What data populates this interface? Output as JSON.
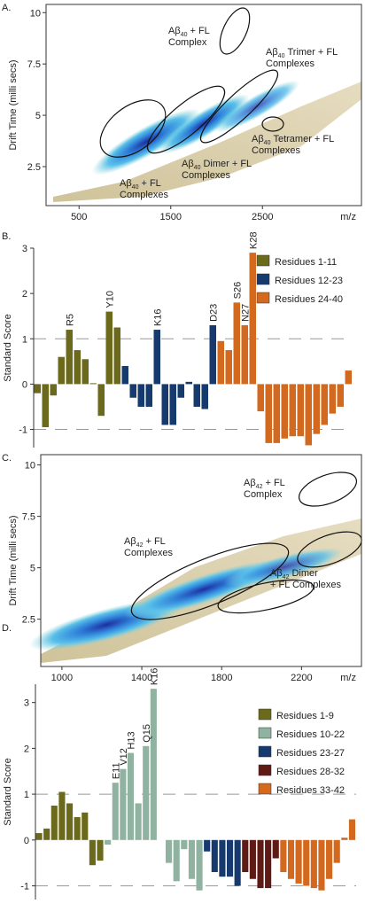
{
  "chart_data": [
    {
      "type": "heatmap",
      "panel": "A.",
      "ylabel": "Drift Time (milli secs)",
      "xlabel": "m/z",
      "xlim": [
        140,
        3580
      ],
      "ylim": [
        0.6,
        10.4
      ],
      "xticks": [
        500,
        1500,
        2500
      ],
      "yticks": [
        2.5,
        5,
        7.5,
        10
      ],
      "annotations": [
        {
          "label": "Aβ",
          "sub": "40",
          "suffix": "+ FL",
          "line2": "Complex"
        },
        {
          "label": "Aβ",
          "sub": "40",
          "suffix": "Trimer + FL",
          "line2": "Complexes"
        },
        {
          "label": "Aβ",
          "sub": "40",
          "suffix": "Tetramer + FL",
          "line2": "Complexes"
        },
        {
          "label": "Aβ",
          "sub": "40",
          "suffix": "Dimer + FL",
          "line2": "Complexes"
        },
        {
          "label": "Aβ",
          "sub": "40",
          "suffix": "+ FL",
          "line2": "Complexes"
        }
      ]
    },
    {
      "type": "bar",
      "panel": "B.",
      "ylabel": "Standard Score",
      "ylim": [
        -1.4,
        3.0
      ],
      "yticks": [
        -1,
        0,
        1,
        2,
        3
      ],
      "ref_lines": [
        -1,
        1
      ],
      "categories": [
        null,
        null,
        null,
        null,
        "R5",
        null,
        null,
        null,
        null,
        "Y10",
        null,
        null,
        null,
        null,
        null,
        "K16",
        null,
        null,
        null,
        null,
        null,
        null,
        "D23",
        null,
        null,
        "S26",
        "N27",
        "K28",
        null,
        null,
        null,
        null,
        null,
        null,
        null,
        null,
        null,
        null,
        null,
        null
      ],
      "series": [
        {
          "name": "Residues 1-11",
          "color": "#6b6a1c",
          "values": [
            -0.2,
            -0.95,
            -0.25,
            0.6,
            1.2,
            0.75,
            0.55,
            0.02,
            -0.7,
            1.6,
            1.25,
            null,
            null,
            null,
            null,
            null,
            null,
            null,
            null,
            null,
            null,
            null,
            null,
            null,
            null,
            null,
            null,
            null,
            null,
            null,
            null,
            null,
            null,
            null,
            null,
            null,
            null,
            null,
            null,
            null
          ]
        },
        {
          "name": "Residues 12-23",
          "color": "#173a6e",
          "values": [
            null,
            null,
            null,
            null,
            null,
            null,
            null,
            null,
            null,
            null,
            null,
            0.4,
            -0.3,
            -0.5,
            -0.5,
            1.2,
            -0.9,
            -0.9,
            -0.3,
            0.05,
            -0.5,
            -0.55,
            1.3,
            null,
            null,
            null,
            null,
            null,
            null,
            null,
            null,
            null,
            null,
            null,
            null,
            null,
            null,
            null,
            null,
            null
          ]
        },
        {
          "name": "Residues 24-40",
          "color": "#d2691e",
          "values": [
            null,
            null,
            null,
            null,
            null,
            null,
            null,
            null,
            null,
            null,
            null,
            null,
            null,
            null,
            null,
            null,
            null,
            null,
            null,
            null,
            null,
            null,
            null,
            0.95,
            0.75,
            1.8,
            1.3,
            2.9,
            -0.6,
            -1.3,
            -1.3,
            -1.2,
            -1.15,
            -1.15,
            -1.35,
            -1.1,
            -0.9,
            -0.65,
            -0.5,
            0.3
          ]
        }
      ]
    },
    {
      "type": "heatmap",
      "panel": "C.",
      "ylabel": "Drift Time (milli secs)",
      "xlabel": "m/z",
      "xlim": [
        894,
        2500
      ],
      "ylim": [
        0.2,
        10.5
      ],
      "xticks": [
        1000,
        1400,
        1800,
        2200
      ],
      "yticks": [
        2.5,
        5,
        7.5,
        10
      ],
      "annotations": [
        {
          "label": "Aβ",
          "sub": "42",
          "suffix": "+ FL",
          "line2": "Complex"
        },
        {
          "label": "Aβ",
          "sub": "42",
          "suffix": "+ FL",
          "line2": "Complexes"
        },
        {
          "label": "Aβ",
          "sub": "42",
          "suffix": "Dimer",
          "line2": "+ FL Complexes"
        }
      ]
    },
    {
      "type": "bar",
      "panel": "D.",
      "ylabel": "Standard Score",
      "ylim": [
        -1.3,
        3.4
      ],
      "yticks": [
        -1,
        0,
        1,
        2,
        3
      ],
      "ref_lines": [
        -1,
        1
      ],
      "categories": [
        null,
        null,
        null,
        null,
        null,
        null,
        null,
        null,
        null,
        null,
        "E11",
        "V12",
        "H13",
        null,
        "Q15",
        "K16",
        null,
        null,
        null,
        null,
        null,
        null,
        null,
        null,
        null,
        null,
        null,
        null,
        null,
        null,
        null,
        null,
        null,
        null,
        null,
        null,
        null,
        null,
        null,
        null,
        null,
        null
      ],
      "series": [
        {
          "name": "Residues 1-9",
          "color": "#6b6a1c",
          "values": [
            0.15,
            0.25,
            0.75,
            1.05,
            0.8,
            0.5,
            0.6,
            -0.55,
            -0.45,
            null,
            null,
            null,
            null,
            null,
            null,
            null,
            null,
            null,
            null,
            null,
            null,
            null,
            null,
            null,
            null,
            null,
            null,
            null,
            null,
            null,
            null,
            null,
            null,
            null,
            null,
            null,
            null,
            null,
            null,
            null,
            null,
            null
          ]
        },
        {
          "name": "Residues 10-22",
          "color": "#8fb3a0",
          "values": [
            null,
            null,
            null,
            null,
            null,
            null,
            null,
            null,
            null,
            -0.1,
            1.25,
            1.55,
            1.9,
            0.8,
            2.05,
            3.3,
            0.0,
            -0.5,
            -0.9,
            -0.2,
            -0.85,
            -1.1,
            null,
            null,
            null,
            null,
            null,
            null,
            null,
            null,
            null,
            null,
            null,
            null,
            null,
            null,
            null,
            null,
            null,
            null,
            null,
            null
          ]
        },
        {
          "name": "Residues 23-27",
          "color": "#173a6e",
          "values": [
            null,
            null,
            null,
            null,
            null,
            null,
            null,
            null,
            null,
            null,
            null,
            null,
            null,
            null,
            null,
            null,
            null,
            null,
            null,
            null,
            null,
            null,
            -0.25,
            -0.7,
            -0.8,
            -0.8,
            -1.0,
            null,
            null,
            null,
            null,
            null,
            null,
            null,
            null,
            null,
            null,
            null,
            null,
            null,
            null,
            null
          ]
        },
        {
          "name": "Residues 28-32",
          "color": "#5e1a14",
          "values": [
            null,
            null,
            null,
            null,
            null,
            null,
            null,
            null,
            null,
            null,
            null,
            null,
            null,
            null,
            null,
            null,
            null,
            null,
            null,
            null,
            null,
            null,
            null,
            null,
            null,
            null,
            null,
            -0.7,
            -0.85,
            -1.05,
            -1.05,
            -0.4,
            null,
            null,
            null,
            null,
            null,
            null,
            null,
            null,
            null,
            null
          ]
        },
        {
          "name": "Residues 33-42",
          "color": "#d2691e",
          "values": [
            null,
            null,
            null,
            null,
            null,
            null,
            null,
            null,
            null,
            null,
            null,
            null,
            null,
            null,
            null,
            null,
            null,
            null,
            null,
            null,
            null,
            null,
            null,
            null,
            null,
            null,
            null,
            null,
            null,
            null,
            null,
            null,
            -0.7,
            -0.85,
            -0.95,
            -1.0,
            -1.05,
            -1.1,
            -0.85,
            -0.5,
            0.05,
            0.45
          ]
        }
      ]
    }
  ]
}
